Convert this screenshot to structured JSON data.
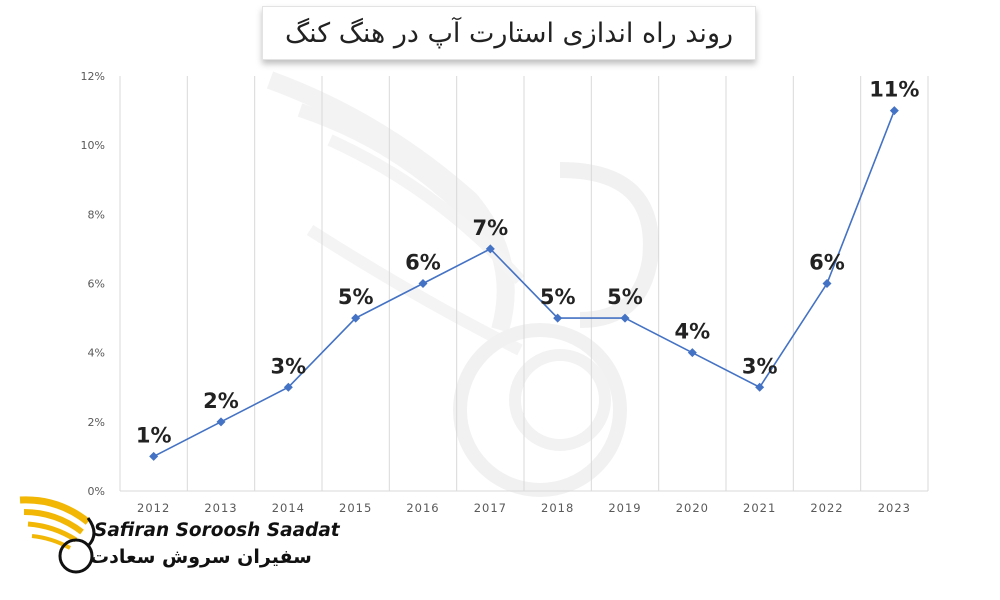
{
  "title": "روند راه اندازی استارت آپ در هنگ کنگ",
  "logo": {
    "english": "Safiran Soroosh Saadat",
    "persian": "سفیران سروش سعادت"
  },
  "colors": {
    "line": "#4472C4",
    "grid": "#d9d9d9",
    "tick_text": "#595959",
    "label_text": "#222222",
    "logo_gold": "#f2b705"
  },
  "chart_data": {
    "type": "line",
    "categories": [
      "2012",
      "2013",
      "2014",
      "2015",
      "2016",
      "2017",
      "2018",
      "2019",
      "2020",
      "2021",
      "2022",
      "2023"
    ],
    "values": [
      1,
      2,
      3,
      5,
      6,
      7,
      5,
      5,
      4,
      3,
      6,
      11
    ],
    "data_labels": [
      "1%",
      "2%",
      "3%",
      "5%",
      "6%",
      "7%",
      "5%",
      "5%",
      "4%",
      "3%",
      "6%",
      "11%"
    ],
    "y_ticks": [
      "0%",
      "2%",
      "4%",
      "6%",
      "8%",
      "10%",
      "12%"
    ],
    "ylim": [
      0,
      12
    ],
    "grid": "vertical",
    "legend": "none"
  }
}
